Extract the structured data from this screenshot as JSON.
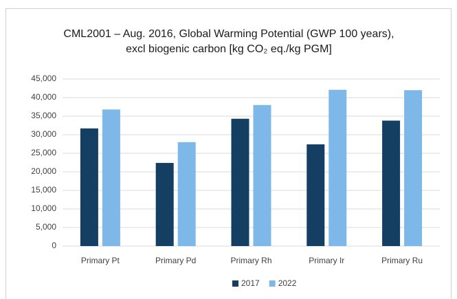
{
  "chart_data": {
    "type": "bar",
    "title": [
      "CML2001 – Aug. 2016, Global Warming Potential (GWP 100 years),",
      "excl biogenic carbon [kg CO₂ eq./kg PGM]"
    ],
    "categories": [
      "Primary Pt",
      "Primary Pd",
      "Primary Rh",
      "Primary Ir",
      "Primary Ru"
    ],
    "series": [
      {
        "name": "2017",
        "color": "#143f63",
        "values": [
          31700,
          22400,
          34300,
          27400,
          33800
        ]
      },
      {
        "name": "2022",
        "color": "#7db8e8",
        "values": [
          36800,
          28000,
          38000,
          42100,
          42000
        ]
      }
    ],
    "ylim": [
      0,
      45000
    ],
    "yticks": [
      0,
      {
        "value": 5000,
        "label": "5,000"
      },
      {
        "value": 10000,
        "label": "10,000"
      },
      {
        "value": 15000,
        "label": "15,000"
      },
      {
        "value": 20000,
        "label": "20,000"
      },
      {
        "value": 25000,
        "label": "25,000"
      },
      {
        "value": 30000,
        "label": "30,000"
      },
      {
        "value": 35000,
        "label": "35,000"
      },
      {
        "value": 40000,
        "label": "40,000"
      },
      {
        "value": 45000,
        "label": "45,000"
      }
    ],
    "grid": true,
    "legend": "bottom"
  }
}
